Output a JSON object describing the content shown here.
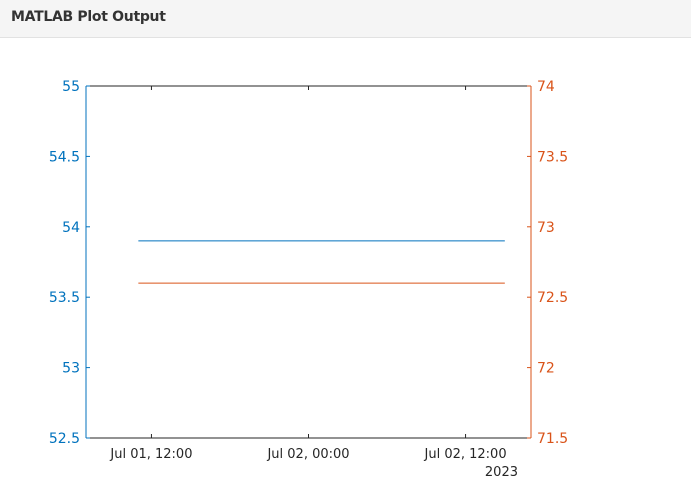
{
  "window": {
    "title": "MATLAB Plot Output"
  },
  "colors": {
    "left_axis": "#0072BD",
    "right_axis": "#D95319",
    "frame": "#262626",
    "tick_text": "#262626"
  },
  "chart_data": {
    "type": "line",
    "title": "",
    "xlabel": "",
    "x_ticks": [
      "Jul 01, 12:00",
      "Jul 02, 00:00",
      "Jul 02, 12:00"
    ],
    "x_secondary_label": "2023",
    "x_range": [
      "2023-07-01 07:00",
      "2023-07-02 17:00"
    ],
    "left_axis": {
      "label": "",
      "ylim": [
        52.5,
        55
      ],
      "ticks": [
        "52.5",
        "53",
        "53.5",
        "54",
        "54.5",
        "55"
      ],
      "tick_values": [
        52.5,
        53,
        53.5,
        54,
        54.5,
        55
      ]
    },
    "right_axis": {
      "label": "",
      "ylim": [
        71.5,
        74
      ],
      "ticks": [
        "71.5",
        "72",
        "72.5",
        "73",
        "73.5",
        "74"
      ],
      "tick_values": [
        71.5,
        72,
        72.5,
        73,
        73.5,
        74
      ]
    },
    "series": [
      {
        "axis": "left",
        "color": "#0072BD",
        "x": [
          "2023-07-01 11:00",
          "2023-07-02 15:00"
        ],
        "y": [
          53.9,
          53.9
        ]
      },
      {
        "axis": "right",
        "color": "#D95319",
        "x": [
          "2023-07-01 11:00",
          "2023-07-02 15:00"
        ],
        "y": [
          72.6,
          72.6
        ]
      }
    ],
    "grid": false,
    "legend": "none"
  }
}
